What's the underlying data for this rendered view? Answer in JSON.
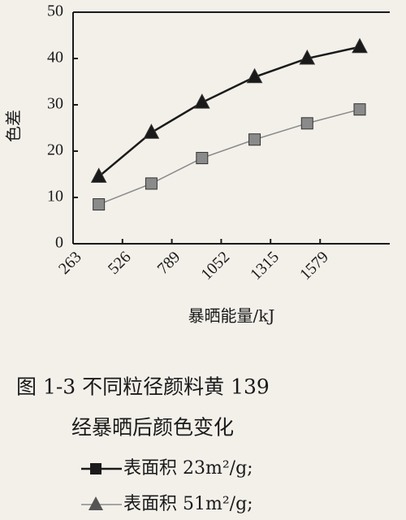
{
  "chart_data": {
    "type": "line",
    "caption": [
      "图 1-3  不同粒径颜料黄 139",
      "经暴晒后颜色变化"
    ],
    "x_label": "暴晒能量/kJ",
    "y_label": "色差",
    "x": [
      400,
      680,
      950,
      1230,
      1510,
      1790
    ],
    "series": [
      {
        "name": "表面积 23m²/g;",
        "color": "#8a8a8a",
        "marker": "square",
        "values": [
          8.5,
          13,
          18.5,
          22.5,
          26,
          29
        ]
      },
      {
        "name": "表面积 51m²/g;",
        "color": "#1a1a1a",
        "marker": "triangle",
        "values": [
          14.5,
          24,
          30.5,
          36,
          40,
          42.5
        ]
      }
    ],
    "xlim": [
      263,
      1950
    ],
    "xticks": [
      263,
      526,
      789,
      1052,
      1315,
      1579
    ],
    "ylim": [
      0,
      50
    ],
    "yticks": [
      0,
      10,
      20,
      30,
      40,
      50
    ]
  }
}
